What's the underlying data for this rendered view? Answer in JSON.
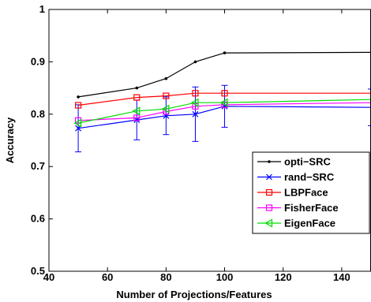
{
  "chart_data": {
    "type": "line",
    "title": "",
    "xlabel": "Number of Projections/Features",
    "ylabel": "Accuracy",
    "xlim": [
      40,
      150
    ],
    "ylim": [
      0.5,
      1.0
    ],
    "xticks": [
      40,
      60,
      80,
      100,
      120,
      140
    ],
    "yticks": [
      0.5,
      0.6,
      0.7,
      0.8,
      0.9,
      1.0
    ],
    "xtick_labels": [
      "40",
      "60",
      "80",
      "100",
      "120",
      "140"
    ],
    "ytick_labels": [
      "0.5",
      "0.6",
      "0.7",
      "0.8",
      "0.9",
      "1"
    ],
    "grid": false,
    "legend_position": "lower-right",
    "series": [
      {
        "name": "opti−SRC",
        "color": "#000000",
        "marker": "dot",
        "x": [
          50,
          70,
          80,
          90,
          100,
          150
        ],
        "y": [
          0.833,
          0.85,
          0.868,
          0.9,
          0.917,
          0.918
        ]
      },
      {
        "name": "rand−SRC",
        "color": "#0000ff",
        "marker": "x",
        "x": [
          50,
          70,
          80,
          90,
          100,
          150
        ],
        "y": [
          0.773,
          0.789,
          0.797,
          0.8,
          0.815,
          0.813
        ],
        "error": [
          0.045,
          0.038,
          0.036,
          0.052,
          0.04,
          0.035
        ]
      },
      {
        "name": "LBPFace",
        "color": "#ff0000",
        "marker": "square",
        "x": [
          50,
          70,
          80,
          90,
          100,
          150
        ],
        "y": [
          0.817,
          0.832,
          0.835,
          0.84,
          0.84,
          0.84
        ]
      },
      {
        "name": "FisherFace",
        "color": "#ff00ff",
        "marker": "square",
        "x": [
          50,
          70,
          80,
          90,
          100,
          150
        ],
        "y": [
          0.788,
          0.793,
          0.805,
          0.815,
          0.818,
          0.822
        ]
      },
      {
        "name": "EigenFace",
        "color": "#00dd00",
        "marker": "triangle-left",
        "x": [
          50,
          70,
          80,
          90,
          100,
          150
        ],
        "y": [
          0.783,
          0.806,
          0.81,
          0.822,
          0.822,
          0.828
        ]
      }
    ]
  }
}
